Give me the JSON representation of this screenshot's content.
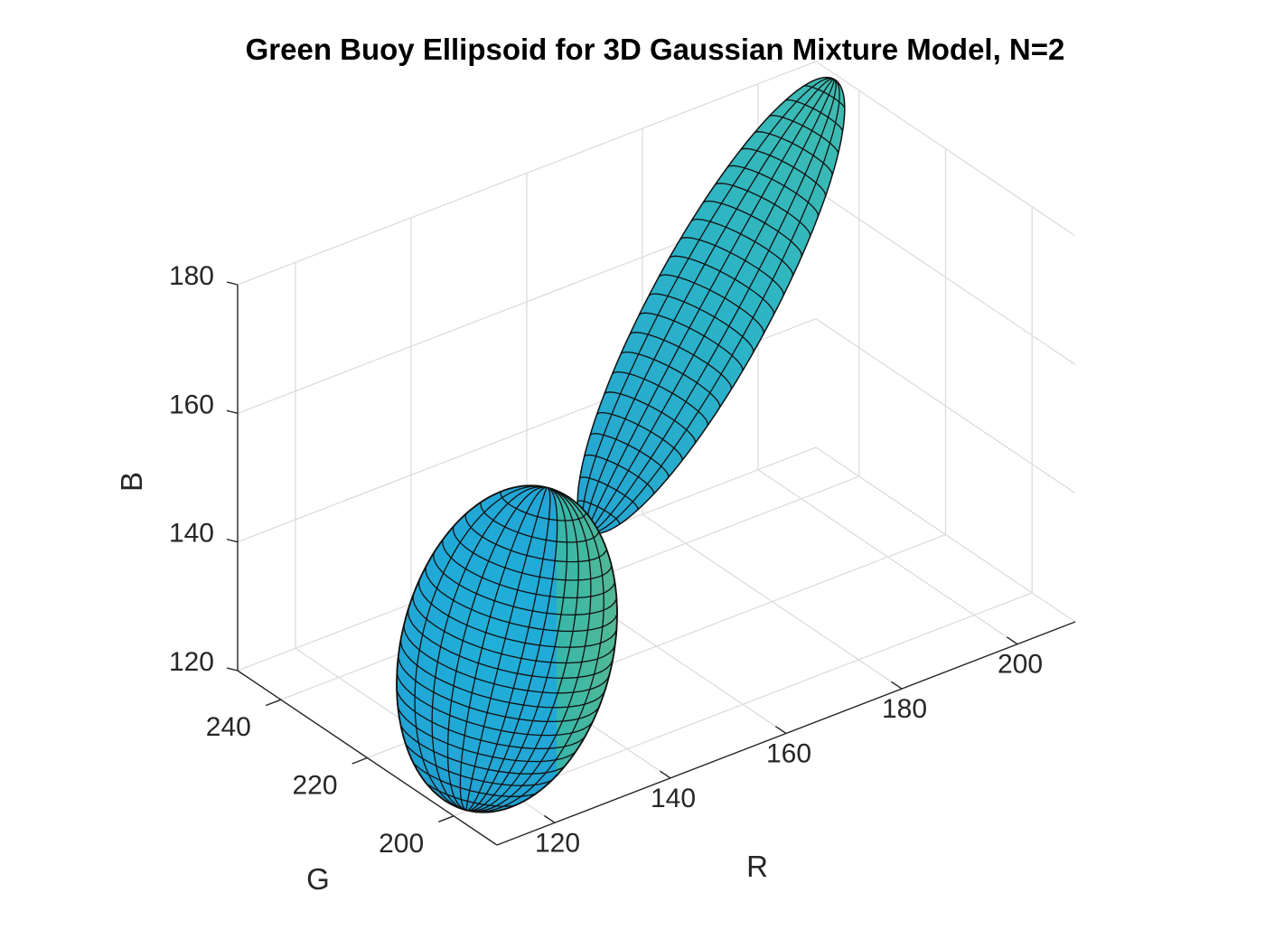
{
  "chart_data": {
    "type": "surface3d",
    "title": "Green Buoy Ellipsoid for 3D Gaussian Mixture Model, N=2",
    "xlabel": "R",
    "ylabel": "G",
    "zlabel": "B",
    "x_ticks": [
      120,
      140,
      160,
      180,
      200
    ],
    "y_ticks": [
      200,
      220,
      240
    ],
    "z_ticks": [
      120,
      140,
      160,
      180
    ],
    "xlim": [
      110,
      210
    ],
    "ylim": [
      190,
      250
    ],
    "zlim": [
      120,
      180
    ],
    "grid": true,
    "surface_colors": {
      "light": "#21b6cf",
      "mid": "#29a8d8",
      "dark": "#1f93c9",
      "edge": "#4fbf8a",
      "mesh": "#111111"
    },
    "series": [
      {
        "name": "",
        "center": [
          130,
          222,
          127
        ],
        "semi_axes_ticks": "large rounded ellipsoid"
      },
      {
        "name": "",
        "center": [
          180,
          210,
          160
        ],
        "semi_axes_ticks": "elongated thin ellipsoid"
      }
    ]
  }
}
